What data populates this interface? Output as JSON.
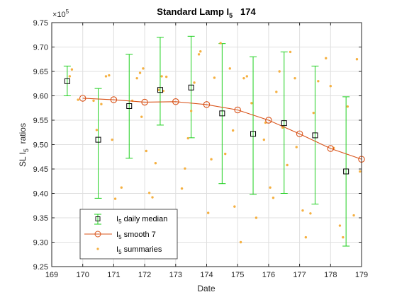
{
  "chart_data": {
    "type": "scatter",
    "title": "Standard Lamp I",
    "title_sub": "5",
    "title_suffix": "   174",
    "xlabel": "Date",
    "ylabel_prefix": "SL I",
    "ylabel_sub": "5",
    "ylabel_suffix": "  ratios",
    "y_exponent_label": "×10",
    "y_exponent_power": "5",
    "xlim": [
      169,
      179
    ],
    "ylim": [
      9.25,
      9.75
    ],
    "x_ticks": [
      169,
      170,
      171,
      172,
      173,
      174,
      175,
      176,
      177,
      178,
      179
    ],
    "y_ticks": [
      9.25,
      9.3,
      9.35,
      9.4,
      9.45,
      9.5,
      9.55,
      9.6,
      9.65,
      9.7,
      9.75
    ],
    "grid": true,
    "legend_position": "bottom-left",
    "legend": [
      {
        "prefix": "I",
        "sub": "5",
        "suffix": " daily median"
      },
      {
        "prefix": "I",
        "sub": "5",
        "suffix": " smooth 7"
      },
      {
        "prefix": "I",
        "sub": "5",
        "suffix": " summaries"
      }
    ],
    "colors": {
      "median": "#000000",
      "errorbar": "#1fd01f",
      "smooth": "#d95319",
      "summaries": "#f5b041"
    },
    "series": [
      {
        "name": "I5 daily median",
        "type": "errorbar",
        "x": [
          169.5,
          170.5,
          171.5,
          172.5,
          173.5,
          174.5,
          175.5,
          176.5,
          177.5,
          178.5
        ],
        "y": [
          9.63,
          9.51,
          9.579,
          9.612,
          9.617,
          9.564,
          9.522,
          9.544,
          9.519,
          9.445
        ],
        "low": [
          9.6,
          9.39,
          9.472,
          9.54,
          9.514,
          9.42,
          9.398,
          9.4,
          9.378,
          9.292
        ],
        "high": [
          9.661,
          9.615,
          9.685,
          9.72,
          9.722,
          9.707,
          9.68,
          9.69,
          9.661,
          9.598
        ]
      },
      {
        "name": "I5 smooth 7",
        "type": "line",
        "x": [
          170,
          171,
          172,
          173,
          174,
          175,
          176,
          177,
          178,
          179
        ],
        "y": [
          9.595,
          9.592,
          9.587,
          9.588,
          9.582,
          9.571,
          9.55,
          9.522,
          9.492,
          9.47
        ]
      },
      {
        "name": "I5 summaries",
        "type": "scatter",
        "x": [
          169.58,
          169.65,
          169.85,
          170.35,
          170.45,
          170.6,
          170.75,
          170.85,
          170.95,
          171.05,
          171.25,
          171.6,
          171.75,
          171.85,
          171.9,
          171.95,
          172.05,
          172.15,
          172.25,
          172.35,
          172.45,
          172.55,
          172.6,
          172.7,
          173.2,
          173.3,
          173.4,
          173.5,
          173.6,
          173.75,
          173.8,
          174.05,
          174.15,
          174.25,
          174.45,
          174.6,
          174.75,
          174.85,
          174.9,
          175.1,
          175.2,
          175.3,
          175.45,
          175.6,
          175.85,
          175.9,
          176.05,
          176.15,
          176.25,
          176.35,
          176.45,
          176.6,
          176.7,
          176.85,
          176.9,
          177.1,
          177.2,
          177.35,
          177.45,
          177.6,
          177.85,
          178.0,
          178.1,
          178.3,
          178.4,
          178.55,
          178.75,
          178.85,
          178.95
        ],
        "y": [
          9.64,
          9.654,
          9.592,
          9.59,
          9.53,
          9.583,
          9.64,
          9.642,
          9.51,
          9.389,
          9.412,
          9.59,
          9.636,
          9.647,
          9.557,
          9.656,
          9.487,
          9.401,
          9.392,
          9.462,
          9.612,
          9.64,
          9.61,
          9.639,
          9.41,
          9.451,
          9.513,
          9.569,
          9.627,
          9.685,
          9.691,
          9.36,
          9.47,
          9.637,
          9.708,
          9.481,
          9.656,
          9.529,
          9.373,
          9.3,
          9.636,
          9.64,
          9.585,
          9.35,
          9.51,
          9.545,
          9.412,
          9.391,
          9.608,
          9.65,
          9.535,
          9.458,
          9.69,
          9.636,
          9.495,
          9.365,
          9.31,
          9.359,
          9.565,
          9.63,
          9.677,
          9.62,
          9.493,
          9.334,
          9.31,
          9.578,
          9.355,
          9.675,
          9.445
        ]
      }
    ]
  }
}
